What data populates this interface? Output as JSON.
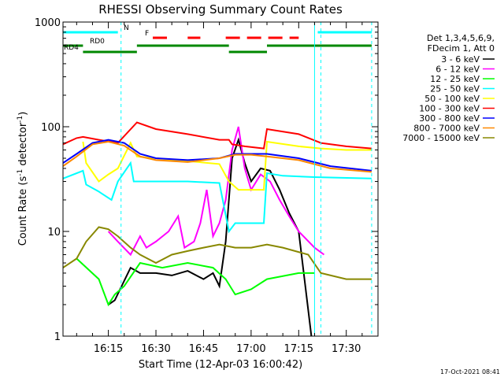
{
  "chart_data": {
    "type": "line",
    "title": "RHESSI Observing Summary Count Rates",
    "xlabel": "Start Time (12-Apr-03 16:00:42)",
    "ylabel": "Count Rate (s",
    "ylabel_sup": "-1",
    "ylabel_tail": " detector",
    "ylabel_close": ")",
    "yscale": "log",
    "ylim": [
      1,
      1000
    ],
    "xlim": [
      "16:00:42",
      "17:40:00"
    ],
    "x_ticks": [
      "16:15",
      "16:30",
      "16:45",
      "17:00",
      "17:15",
      "17:30"
    ],
    "y_ticks": [
      "1",
      "10",
      "100",
      "1000"
    ],
    "legend_header": [
      "Det 1,3,4,5,6,9,",
      "FDecim 1, Att 0"
    ],
    "timestamp": "17-Oct-2021 08:41",
    "flags": [
      {
        "label": "N",
        "color": "#00ffff",
        "spans": [
          [
            "16:00:42",
            "16:18:00"
          ],
          [
            "17:21:00",
            "17:38:00"
          ]
        ]
      },
      {
        "label": "F",
        "color": "#ff0000",
        "spans": [
          [
            "16:29:00",
            "16:34:00"
          ],
          [
            "16:40:00",
            "16:44:00"
          ],
          [
            "16:52:00",
            "17:15:00"
          ]
        ]
      },
      {
        "label": "RD0",
        "color": "#008800",
        "spans": [
          [
            "16:00:42",
            "16:07:00"
          ],
          [
            "16:24:00",
            "16:53:00"
          ],
          [
            "17:05:00",
            "17:38:00"
          ]
        ]
      },
      {
        "label": "RD4",
        "color": "#008800",
        "spans": [
          [
            "16:07:00",
            "16:24:00"
          ],
          [
            "16:53:00",
            "17:05:00"
          ]
        ]
      }
    ],
    "vlines_solid": [
      "16:00:42",
      "17:20:00"
    ],
    "vlines_dashed": [
      "16:19:00",
      "17:22:00",
      "17:38:00"
    ],
    "series": [
      {
        "name": "3 - 6 keV",
        "color": "#000000",
        "values": [
          [
            "16:15:00",
            2.0
          ],
          [
            "16:17:00",
            2.2
          ],
          [
            "16:22:00",
            4.5
          ],
          [
            "16:25:00",
            4.0
          ],
          [
            "16:30:00",
            4.0
          ],
          [
            "16:35:00",
            3.8
          ],
          [
            "16:40:00",
            4.2
          ],
          [
            "16:45:00",
            3.5
          ],
          [
            "16:48:00",
            4.0
          ],
          [
            "16:50:00",
            3.0
          ],
          [
            "16:52:00",
            8.0
          ],
          [
            "16:54:00",
            50
          ],
          [
            "16:56:00",
            75
          ],
          [
            "16:58:00",
            45
          ],
          [
            "17:00:00",
            30
          ],
          [
            "17:03:00",
            40
          ],
          [
            "17:06:00",
            38
          ],
          [
            "17:09:00",
            25
          ],
          [
            "17:12:00",
            15
          ],
          [
            "17:15:00",
            10
          ],
          [
            "17:19:00",
            1.0
          ]
        ]
      },
      {
        "name": "6 - 12 keV",
        "color": "#ff00ff",
        "values": [
          [
            "16:15:00",
            10
          ],
          [
            "16:18:00",
            8
          ],
          [
            "16:22:00",
            6
          ],
          [
            "16:25:00",
            9
          ],
          [
            "16:27:00",
            7
          ],
          [
            "16:30:00",
            8
          ],
          [
            "16:34:00",
            10
          ],
          [
            "16:37:00",
            14
          ],
          [
            "16:39:00",
            7
          ],
          [
            "16:42:00",
            8
          ],
          [
            "16:44:00",
            12
          ],
          [
            "16:46:00",
            25
          ],
          [
            "16:48:00",
            9
          ],
          [
            "16:50:00",
            12
          ],
          [
            "16:52:00",
            20
          ],
          [
            "16:54:00",
            60
          ],
          [
            "16:56:00",
            100
          ],
          [
            "16:58:00",
            40
          ],
          [
            "17:00:00",
            25
          ],
          [
            "17:03:00",
            35
          ],
          [
            "17:06:00",
            30
          ],
          [
            "17:09:00",
            20
          ],
          [
            "17:12:00",
            14
          ],
          [
            "17:15:00",
            10
          ],
          [
            "17:20:00",
            7
          ],
          [
            "17:23:00",
            6
          ]
        ]
      },
      {
        "name": "12 - 25 keV",
        "color": "#00ff00",
        "values": [
          [
            "16:05:00",
            5.5
          ],
          [
            "16:12:00",
            3.5
          ],
          [
            "16:15:00",
            2.0
          ],
          [
            "16:17:00",
            2.5
          ],
          [
            "16:20:00",
            3.0
          ],
          [
            "16:25:00",
            5.0
          ],
          [
            "16:32:00",
            4.5
          ],
          [
            "16:40:00",
            5.0
          ],
          [
            "16:48:00",
            4.5
          ],
          [
            "16:52:00",
            3.5
          ],
          [
            "16:55:00",
            2.5
          ],
          [
            "17:00:00",
            2.8
          ],
          [
            "17:05:00",
            3.5
          ],
          [
            "17:15:00",
            4.0
          ],
          [
            "17:20:00",
            4.0
          ]
        ]
      },
      {
        "name": "25 - 50 keV",
        "color": "#00ffff",
        "values": [
          [
            "16:00:42",
            32
          ],
          [
            "16:07:00",
            38
          ],
          [
            "16:08:00",
            28
          ],
          [
            "16:12:00",
            24
          ],
          [
            "16:16:00",
            20
          ],
          [
            "16:18:00",
            30
          ],
          [
            "16:22:00",
            45
          ],
          [
            "16:23:00",
            30
          ],
          [
            "16:30:00",
            30
          ],
          [
            "16:40:00",
            30
          ],
          [
            "16:50:00",
            29
          ],
          [
            "16:53:00",
            10
          ],
          [
            "16:55:00",
            12
          ],
          [
            "17:00:00",
            12
          ],
          [
            "17:04:00",
            12
          ],
          [
            "17:05:00",
            36
          ],
          [
            "17:10:00",
            34
          ],
          [
            "17:20:00",
            33
          ],
          [
            "17:38:00",
            32
          ]
        ]
      },
      {
        "name": "50 - 100 keV",
        "color": "#ffff00",
        "values": [
          [
            "16:07:00",
            72
          ],
          [
            "16:08:00",
            45
          ],
          [
            "16:12:00",
            30
          ],
          [
            "16:15:00",
            35
          ],
          [
            "16:18:00",
            40
          ],
          [
            "16:22:00",
            70
          ],
          [
            "16:24:00",
            52
          ],
          [
            "16:30:00",
            50
          ],
          [
            "16:40:00",
            47
          ],
          [
            "16:50:00",
            44
          ],
          [
            "16:53:00",
            30
          ],
          [
            "16:56:00",
            25
          ],
          [
            "17:00:00",
            25
          ],
          [
            "17:04:00",
            25
          ],
          [
            "17:05:00",
            72
          ],
          [
            "17:15:00",
            65
          ],
          [
            "17:22:00",
            62
          ],
          [
            "17:30:00",
            60
          ],
          [
            "17:38:00",
            60
          ]
        ]
      },
      {
        "name": "100 - 300 keV",
        "color": "#ff0000",
        "values": [
          [
            "16:00:42",
            68
          ],
          [
            "16:05:00",
            78
          ],
          [
            "16:07:00",
            80
          ],
          [
            "16:12:00",
            75
          ],
          [
            "16:18:00",
            70
          ],
          [
            "16:24:00",
            110
          ],
          [
            "16:30:00",
            95
          ],
          [
            "16:40:00",
            85
          ],
          [
            "16:50:00",
            75
          ],
          [
            "16:53:00",
            75
          ],
          [
            "16:54:00",
            68
          ],
          [
            "16:58:00",
            65
          ],
          [
            "17:04:00",
            62
          ],
          [
            "17:05:00",
            95
          ],
          [
            "17:15:00",
            85
          ],
          [
            "17:22:00",
            70
          ],
          [
            "17:30:00",
            65
          ],
          [
            "17:38:00",
            62
          ]
        ]
      },
      {
        "name": "300 - 800 keV",
        "color": "#0000ff",
        "values": [
          [
            "16:00:42",
            45
          ],
          [
            "16:05:00",
            55
          ],
          [
            "16:10:00",
            70
          ],
          [
            "16:15:00",
            75
          ],
          [
            "16:20:00",
            70
          ],
          [
            "16:25:00",
            55
          ],
          [
            "16:30:00",
            50
          ],
          [
            "16:40:00",
            48
          ],
          [
            "16:50:00",
            50
          ],
          [
            "16:55:00",
            55
          ],
          [
            "17:00:00",
            55
          ],
          [
            "17:05:00",
            55
          ],
          [
            "17:15:00",
            50
          ],
          [
            "17:25:00",
            42
          ],
          [
            "17:38:00",
            38
          ]
        ]
      },
      {
        "name": "800 - 7000 keV",
        "color": "#ff8800",
        "values": [
          [
            "16:00:42",
            42
          ],
          [
            "16:05:00",
            52
          ],
          [
            "16:10:00",
            68
          ],
          [
            "16:15:00",
            72
          ],
          [
            "16:20:00",
            66
          ],
          [
            "16:25:00",
            52
          ],
          [
            "16:30:00",
            48
          ],
          [
            "16:40:00",
            46
          ],
          [
            "16:50:00",
            50
          ],
          [
            "16:55:00",
            54
          ],
          [
            "17:00:00",
            54
          ],
          [
            "17:05:00",
            52
          ],
          [
            "17:15:00",
            48
          ],
          [
            "17:25:00",
            40
          ],
          [
            "17:38:00",
            37
          ]
        ]
      },
      {
        "name": "7000 - 15000 keV",
        "color": "#888800",
        "values": [
          [
            "16:00:42",
            4.5
          ],
          [
            "16:05:00",
            5.5
          ],
          [
            "16:08:00",
            8
          ],
          [
            "16:12:00",
            11
          ],
          [
            "16:15:00",
            10.5
          ],
          [
            "16:18:00",
            9
          ],
          [
            "16:22:00",
            7
          ],
          [
            "16:25:00",
            6
          ],
          [
            "16:30:00",
            5
          ],
          [
            "16:35:00",
            6
          ],
          [
            "16:40:00",
            6.5
          ],
          [
            "16:45:00",
            7
          ],
          [
            "16:50:00",
            7.5
          ],
          [
            "16:55:00",
            7
          ],
          [
            "17:00:00",
            7
          ],
          [
            "17:05:00",
            7.5
          ],
          [
            "17:10:00",
            7
          ],
          [
            "17:18:00",
            6
          ],
          [
            "17:22:00",
            4
          ],
          [
            "17:30:00",
            3.5
          ],
          [
            "17:38:00",
            3.5
          ]
        ]
      }
    ]
  }
}
